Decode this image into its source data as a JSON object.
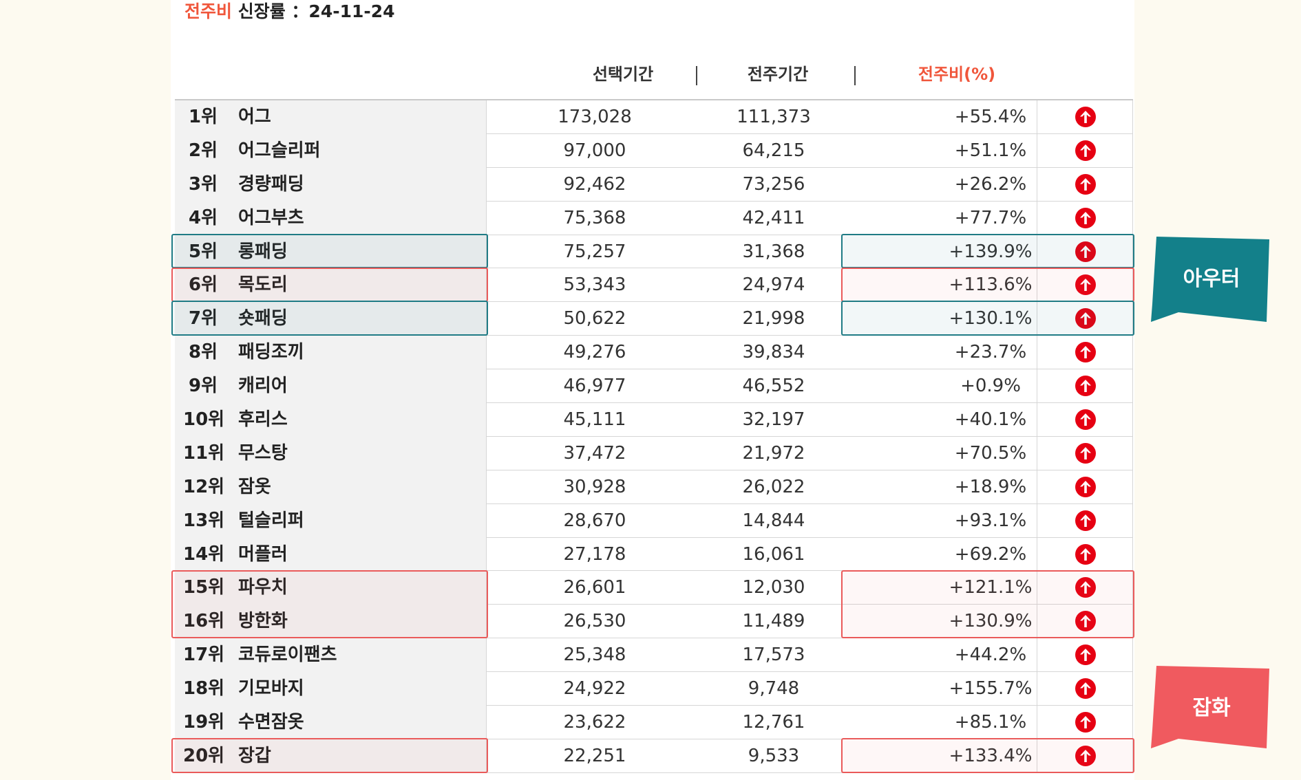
{
  "header": {
    "title_accent": "전주비",
    "title_rest": " 신장률 ：24-11-24",
    "columns": {
      "selected": "선택기간",
      "previous": "전주기간",
      "ratio": "전주비(%)"
    },
    "separator": "|"
  },
  "rows": [
    {
      "rank": "1위",
      "keyword": "어그",
      "selected": "173,028",
      "previous": "111,373",
      "ratio": "+55.4%"
    },
    {
      "rank": "2위",
      "keyword": "어그슬리퍼",
      "selected": "97,000",
      "previous": "64,215",
      "ratio": "+51.1%"
    },
    {
      "rank": "3위",
      "keyword": "경량패딩",
      "selected": "92,462",
      "previous": "73,256",
      "ratio": "+26.2%"
    },
    {
      "rank": "4위",
      "keyword": "어그부츠",
      "selected": "75,368",
      "previous": "42,411",
      "ratio": "+77.7%"
    },
    {
      "rank": "5위",
      "keyword": "롱패딩",
      "selected": "75,257",
      "previous": "31,368",
      "ratio": "+139.9%"
    },
    {
      "rank": "6위",
      "keyword": "목도리",
      "selected": "53,343",
      "previous": "24,974",
      "ratio": "+113.6%"
    },
    {
      "rank": "7위",
      "keyword": "숏패딩",
      "selected": "50,622",
      "previous": "21,998",
      "ratio": "+130.1%"
    },
    {
      "rank": "8위",
      "keyword": "패딩조끼",
      "selected": "49,276",
      "previous": "39,834",
      "ratio": "+23.7%"
    },
    {
      "rank": "9위",
      "keyword": "캐리어",
      "selected": "46,977",
      "previous": "46,552",
      "ratio": "+0.9%"
    },
    {
      "rank": "10위",
      "keyword": "후리스",
      "selected": "45,111",
      "previous": "32,197",
      "ratio": "+40.1%"
    },
    {
      "rank": "11위",
      "keyword": "무스탕",
      "selected": "37,472",
      "previous": "21,972",
      "ratio": "+70.5%"
    },
    {
      "rank": "12위",
      "keyword": "잠옷",
      "selected": "30,928",
      "previous": "26,022",
      "ratio": "+18.9%"
    },
    {
      "rank": "13위",
      "keyword": "털슬리퍼",
      "selected": "28,670",
      "previous": "14,844",
      "ratio": "+93.1%"
    },
    {
      "rank": "14위",
      "keyword": "머플러",
      "selected": "27,178",
      "previous": "16,061",
      "ratio": "+69.2%"
    },
    {
      "rank": "15위",
      "keyword": "파우치",
      "selected": "26,601",
      "previous": "12,030",
      "ratio": "+121.1%"
    },
    {
      "rank": "16위",
      "keyword": "방한화",
      "selected": "26,530",
      "previous": "11,489",
      "ratio": "+130.9%"
    },
    {
      "rank": "17위",
      "keyword": "코듀로이팬츠",
      "selected": "25,348",
      "previous": "17,573",
      "ratio": "+44.2%"
    },
    {
      "rank": "18위",
      "keyword": "기모바지",
      "selected": "24,922",
      "previous": "9,748",
      "ratio": "+155.7%"
    },
    {
      "rank": "19위",
      "keyword": "수면잠옷",
      "selected": "23,622",
      "previous": "12,761",
      "ratio": "+85.1%"
    },
    {
      "rank": "20위",
      "keyword": "장갑",
      "selected": "22,251",
      "previous": "9,533",
      "ratio": "+133.4%"
    }
  ],
  "row_icon": "arrow-up-circle-icon",
  "highlights": [
    {
      "group": "outer",
      "rows": [
        5
      ]
    },
    {
      "group": "misc",
      "rows": [
        6
      ]
    },
    {
      "group": "outer",
      "rows": [
        7
      ]
    },
    {
      "group": "misc",
      "rows": [
        15,
        16
      ]
    },
    {
      "group": "misc",
      "rows": [
        20
      ]
    }
  ],
  "callouts": {
    "outer": {
      "label": "아우터",
      "color": "#13808a"
    },
    "misc": {
      "label": "잡화",
      "color": "#f05a5f"
    }
  },
  "colors": {
    "accent": "#f0563b",
    "up_icon": "#e60012",
    "outer_highlight": "#1f7b85",
    "misc_highlight": "#ea5a5a"
  }
}
